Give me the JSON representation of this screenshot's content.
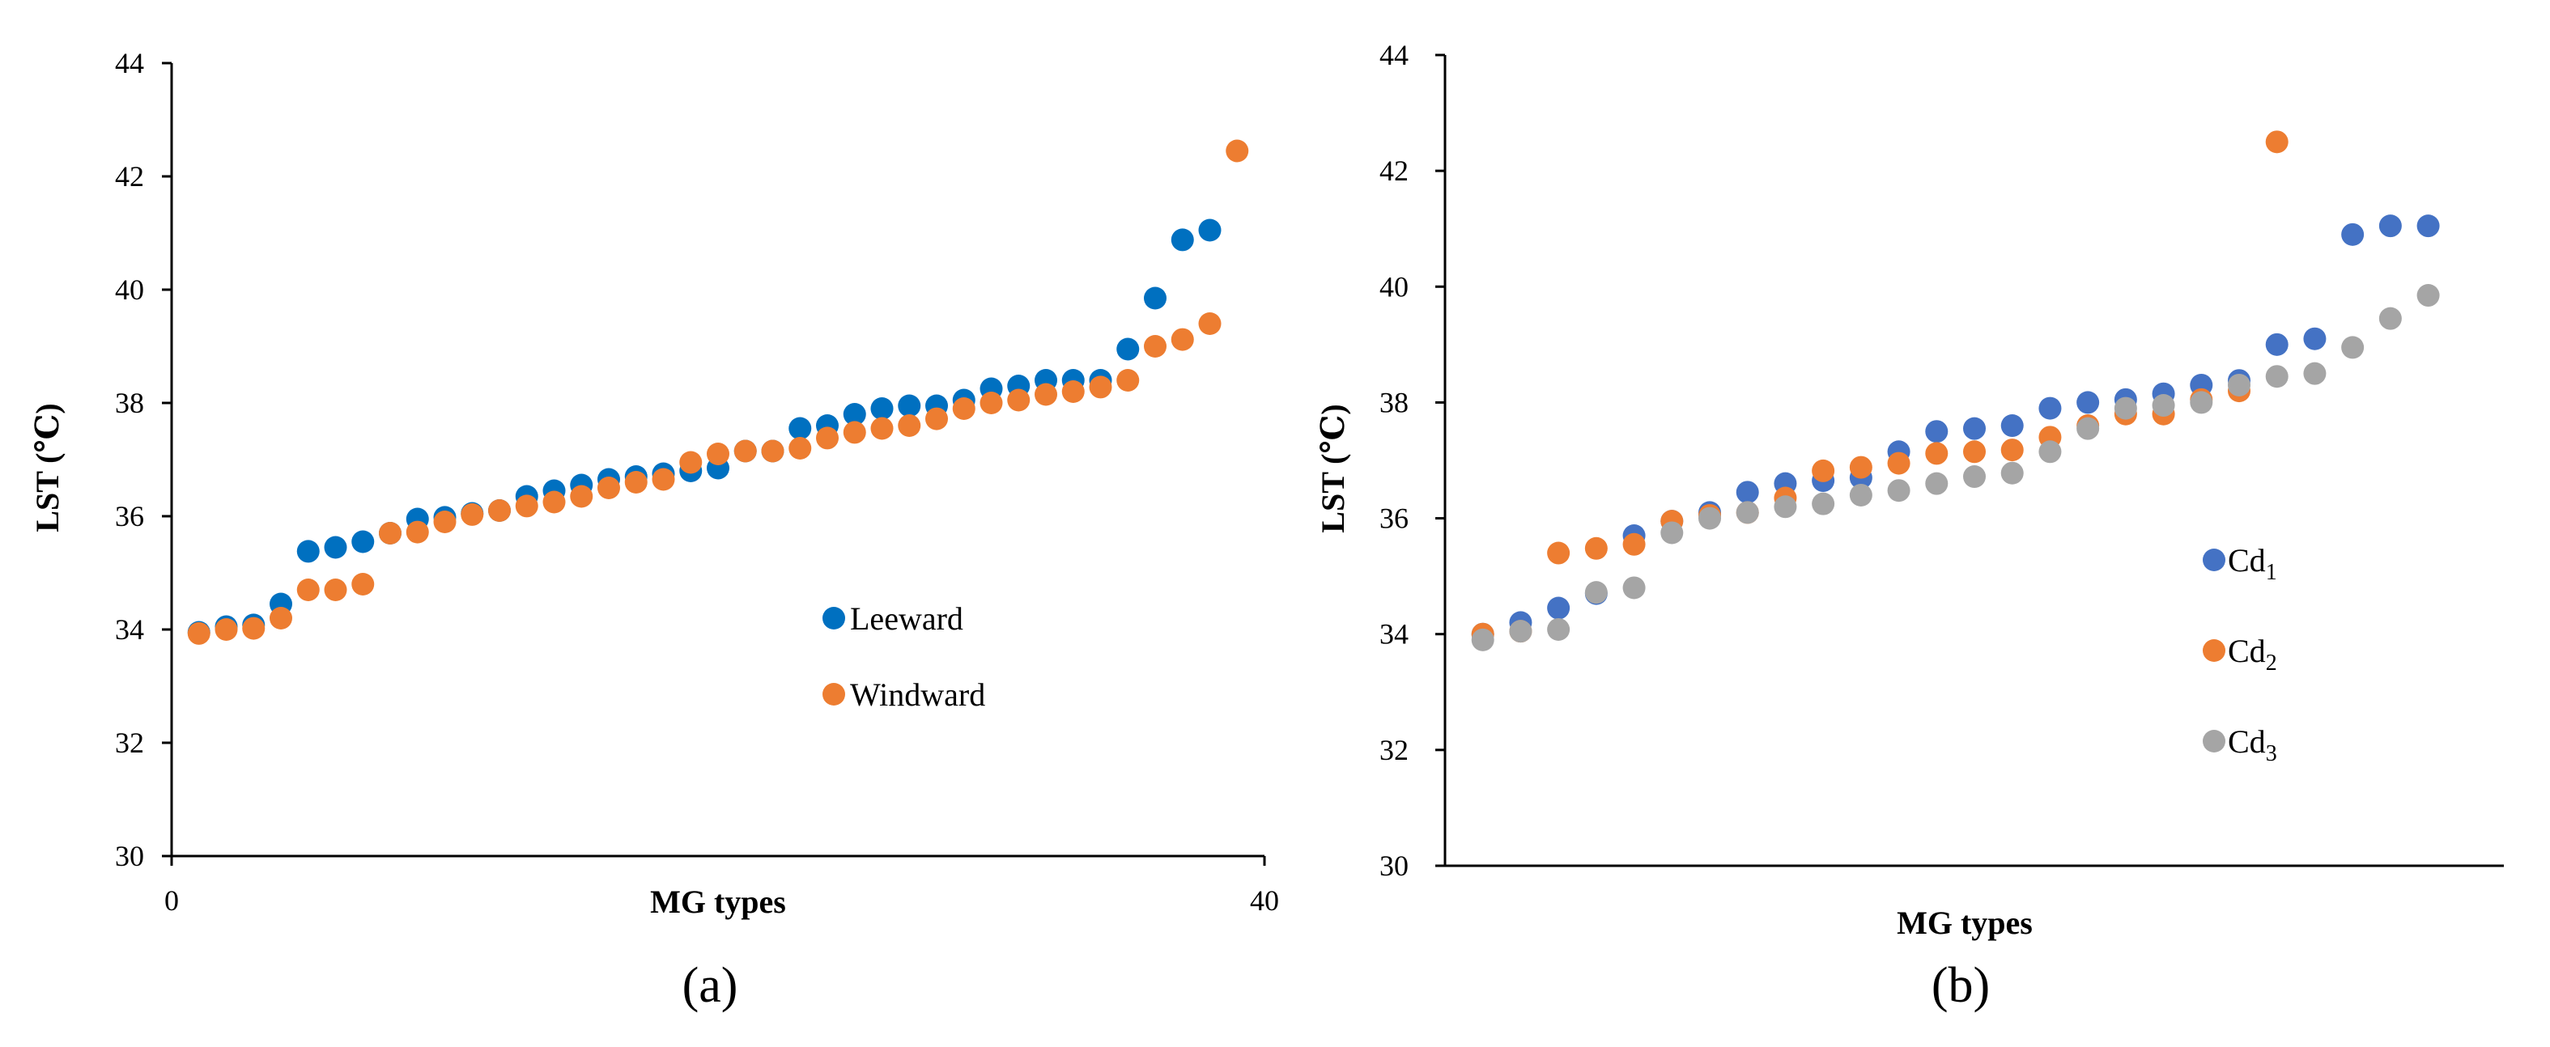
{
  "chart_data": [
    {
      "type": "scatter",
      "panel_label": "(a)",
      "xlabel": "MG types",
      "ylabel": "LST  (℃)",
      "xlim": [
        0,
        40
      ],
      "ylim": [
        30,
        44
      ],
      "x_ticks": [
        "0",
        "40"
      ],
      "y_ticks": [
        "30",
        "32",
        "34",
        "36",
        "38",
        "40",
        "42",
        "44"
      ],
      "grid": false,
      "legend_position": "right-middle",
      "series": [
        {
          "name": "Leeward",
          "color": "#0070C0",
          "x": [
            1,
            2,
            3,
            4,
            5,
            6,
            7,
            8,
            9,
            10,
            11,
            12,
            13,
            14,
            15,
            16,
            17,
            18,
            19,
            20,
            21,
            22,
            23,
            24,
            25,
            26,
            27,
            28,
            29,
            30,
            31,
            32,
            33,
            34,
            35,
            36,
            37,
            38
          ],
          "y": [
            33.95,
            34.05,
            34.08,
            34.45,
            35.38,
            35.45,
            35.55,
            35.7,
            35.95,
            35.98,
            36.05,
            36.1,
            36.35,
            36.45,
            36.55,
            36.65,
            36.7,
            36.75,
            36.8,
            36.85,
            37.15,
            37.15,
            37.55,
            37.6,
            37.8,
            37.9,
            37.95,
            37.95,
            38.05,
            38.25,
            38.3,
            38.4,
            38.4,
            38.4,
            38.95,
            39.85,
            40.88,
            41.05
          ]
        },
        {
          "name": "Windward",
          "color": "#ED7D31",
          "x": [
            1,
            2,
            3,
            4,
            5,
            6,
            7,
            8,
            9,
            10,
            11,
            12,
            13,
            14,
            15,
            16,
            17,
            18,
            19,
            20,
            21,
            22,
            23,
            24,
            25,
            26,
            27,
            28,
            29,
            30,
            31,
            32,
            33,
            34,
            35,
            36,
            37,
            38,
            39
          ],
          "y": [
            33.93,
            34.0,
            34.02,
            34.2,
            34.7,
            34.7,
            34.8,
            35.7,
            35.72,
            35.9,
            36.03,
            36.1,
            36.18,
            36.25,
            36.35,
            36.5,
            36.6,
            36.65,
            36.95,
            37.1,
            37.15,
            37.15,
            37.2,
            37.38,
            37.48,
            37.55,
            37.6,
            37.72,
            37.9,
            38.0,
            38.05,
            38.15,
            38.2,
            38.28,
            38.4,
            39.0,
            39.12,
            39.4,
            42.45
          ]
        }
      ]
    },
    {
      "type": "scatter",
      "panel_label": "(b)",
      "xlabel": "MG types",
      "ylabel": "LST  (℃)",
      "xlim": [
        0,
        28
      ],
      "ylim": [
        30,
        44
      ],
      "x_ticks": [],
      "y_ticks": [
        "30",
        "32",
        "34",
        "36",
        "38",
        "40",
        "42",
        "44"
      ],
      "grid": false,
      "legend_position": "right-middle",
      "series": [
        {
          "name": "Cd",
          "subscript": "1",
          "color": "#4472C4",
          "x": [
            1,
            2,
            3,
            4,
            5,
            6,
            7,
            8,
            9,
            10,
            11,
            12,
            13,
            14,
            15,
            16,
            17,
            18,
            19,
            20,
            21,
            22,
            23,
            24,
            25,
            26
          ],
          "y": [
            34.0,
            34.2,
            34.45,
            34.7,
            35.7,
            35.95,
            36.1,
            36.45,
            36.6,
            36.65,
            36.7,
            37.15,
            37.5,
            37.55,
            37.6,
            37.9,
            38.0,
            38.05,
            38.15,
            38.3,
            38.38,
            39.0,
            39.1,
            40.9,
            41.05,
            41.05
          ]
        },
        {
          "name": "Cd",
          "subscript": "2",
          "color": "#ED7D31",
          "x": [
            1,
            2,
            3,
            4,
            5,
            6,
            7,
            8,
            9,
            10,
            11,
            12,
            13,
            14,
            15,
            16,
            17,
            18,
            19,
            20,
            21,
            22
          ],
          "y": [
            34.0,
            34.05,
            35.4,
            35.48,
            35.55,
            35.95,
            36.05,
            36.1,
            36.35,
            36.82,
            36.88,
            36.95,
            37.12,
            37.15,
            37.18,
            37.4,
            37.6,
            37.8,
            37.8,
            38.05,
            38.2,
            42.5
          ]
        },
        {
          "name": "Cd",
          "subscript": "3",
          "color": "#A5A5A5",
          "x": [
            1,
            2,
            3,
            4,
            5,
            6,
            7,
            8,
            9,
            10,
            11,
            12,
            13,
            14,
            15,
            16,
            17,
            18,
            19,
            20,
            21,
            22,
            23,
            24,
            25,
            26
          ],
          "y": [
            33.9,
            34.05,
            34.08,
            34.72,
            34.8,
            35.75,
            36.0,
            36.1,
            36.2,
            36.25,
            36.4,
            36.48,
            36.6,
            36.72,
            36.78,
            37.15,
            37.55,
            37.9,
            37.95,
            38.0,
            38.3,
            38.45,
            38.5,
            38.95,
            39.45,
            39.85
          ]
        }
      ]
    }
  ]
}
